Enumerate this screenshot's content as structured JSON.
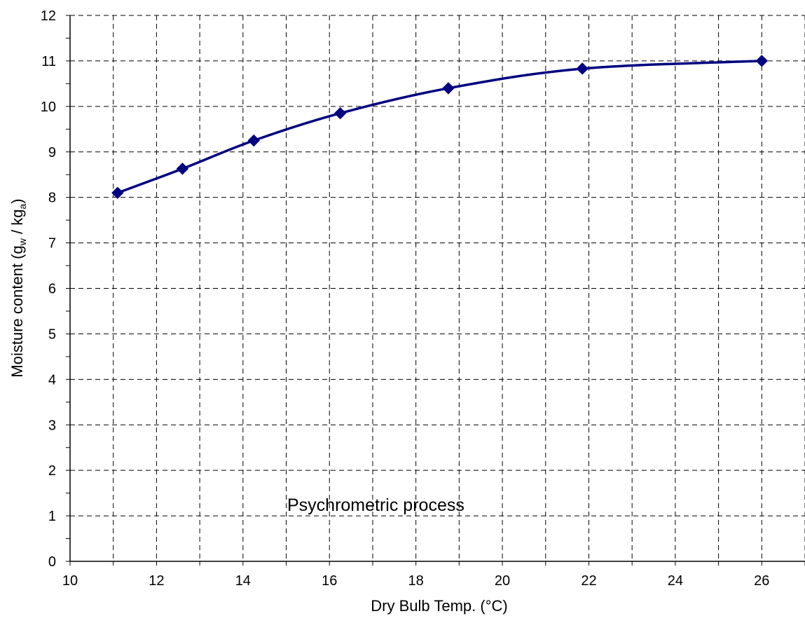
{
  "chart_data": {
    "type": "line",
    "title": "",
    "xlabel": "Dry Bulb Temp. (°C)",
    "ylabel": {
      "main": "Moisture content (g",
      "sub1": "w",
      "mid": " / kg",
      "sub2": "a",
      "end": ")"
    },
    "xlim": [
      10,
      27
    ],
    "ylim": [
      0,
      12
    ],
    "xticks": [
      10,
      12,
      14,
      16,
      18,
      20,
      22,
      24,
      26
    ],
    "yticks": [
      0,
      1,
      2,
      3,
      4,
      5,
      6,
      7,
      8,
      9,
      10,
      11,
      12
    ],
    "grid": true,
    "legend": "none",
    "annotation": "Psychrometric process",
    "series": [
      {
        "color": "#000080",
        "marker": "diamond",
        "x": [
          11.1,
          12.6,
          14.25,
          16.25,
          18.75,
          21.85,
          26.0
        ],
        "y": [
          8.1,
          8.63,
          9.25,
          9.85,
          10.4,
          10.83,
          11.0
        ]
      }
    ],
    "colors": {
      "series": "#000080",
      "grid": "#000000",
      "axis": "#000000"
    }
  }
}
